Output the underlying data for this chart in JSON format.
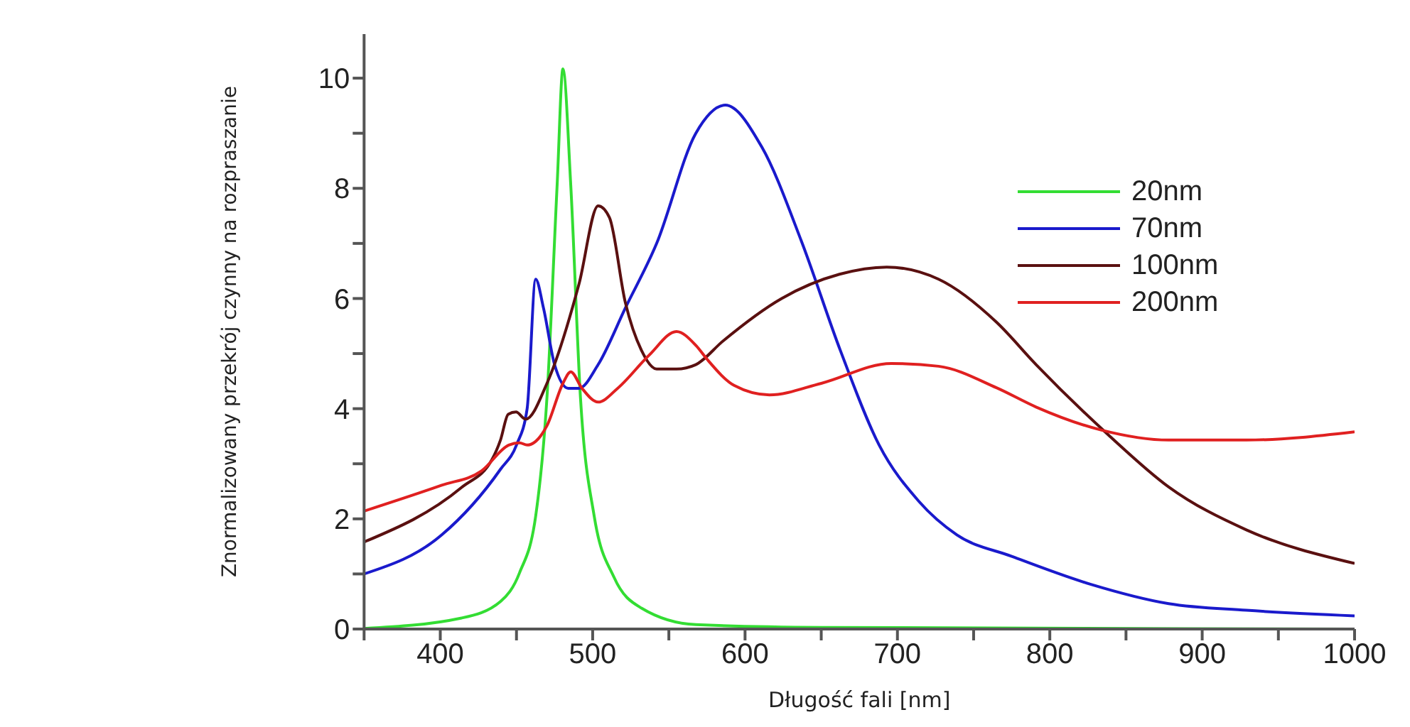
{
  "chart_data": {
    "type": "line",
    "xlabel": "Długość fali [nm]",
    "ylabel": "Znormalizowany przekrój czynny na rozpraszanie",
    "xlim": [
      350,
      1000
    ],
    "ylim": [
      0,
      10.8
    ],
    "xticks": [
      {
        "value": 350,
        "label": null
      },
      400,
      {
        "value": 450,
        "label": null
      },
      500,
      {
        "value": 550,
        "label": null
      },
      600,
      {
        "value": 650,
        "label": null
      },
      700,
      {
        "value": 750,
        "label": null
      },
      800,
      {
        "value": 850,
        "label": null
      },
      900,
      {
        "value": 950,
        "label": null
      },
      1000
    ],
    "yticks": [
      0,
      {
        "value": 1,
        "label": null
      },
      2,
      {
        "value": 3,
        "label": null
      },
      4,
      {
        "value": 5,
        "label": null
      },
      6,
      {
        "value": 7,
        "label": null
      },
      8,
      {
        "value": 9,
        "label": null
      },
      10
    ],
    "grid": false,
    "legend": "top right",
    "marker": "none",
    "line_style": "solid",
    "series": [
      {
        "name": "20nm",
        "color": "#33dd33",
        "x": [
          350,
          414,
          439.5,
          452,
          462.6,
          470,
          476.7,
          480.5,
          485.6,
          492,
          501,
          514,
          532,
          567.7,
          650,
          1000
        ],
        "values": [
          0.01,
          0.2,
          0.5,
          1.02,
          2.05,
          4.2,
          8.07,
          10.17,
          8.07,
          4.2,
          2.05,
          0.94,
          0.38,
          0.08,
          0.03,
          0
        ]
      },
      {
        "name": "70nm",
        "color": "#1a1acc",
        "x": [
          350,
          401,
          439.5,
          450,
          457,
          462.6,
          467.7,
          475,
          484,
          491,
          503.6,
          521.5,
          542,
          567.7,
          587,
          611,
          637,
          662.5,
          688,
          714,
          739,
          775,
          827,
          878,
          929,
          1000
        ],
        "values": [
          1.0,
          1.71,
          2.9,
          3.34,
          4.0,
          6.35,
          5.83,
          4.8,
          4.37,
          4.37,
          4.8,
          5.83,
          7.0,
          9.0,
          9.51,
          8.75,
          7.04,
          5.06,
          3.34,
          2.32,
          1.71,
          1.32,
          0.81,
          0.46,
          0.34,
          0.24
        ]
      },
      {
        "name": "100nm",
        "color": "#5a1010",
        "x": [
          350,
          414,
          434,
          439.5,
          444.6,
          449.7,
          456,
          470,
          491,
          503.6,
          511,
          521.5,
          532,
          542,
          555,
          567.7,
          585.6,
          624,
          662,
          693,
          727,
          765,
          791,
          839,
          878,
          929,
          1000
        ],
        "values": [
          1.58,
          2.57,
          3.08,
          3.43,
          3.9,
          3.94,
          3.81,
          4.46,
          6.26,
          7.68,
          7.47,
          5.92,
          5.06,
          4.72,
          4.72,
          4.8,
          5.23,
          6.0,
          6.44,
          6.57,
          6.35,
          5.57,
          4.8,
          3.51,
          2.58,
          1.8,
          1.19
        ]
      },
      {
        "name": "200nm",
        "color": "#e02020",
        "x": [
          350,
          401,
          427,
          445,
          452,
          457,
          470,
          480.5,
          485.6,
          493,
          503.6,
          516.4,
          537,
          555,
          567.7,
          575,
          593,
          616,
          650,
          696,
          727,
          765,
          791,
          834,
          878,
          929,
          1000
        ],
        "values": [
          2.14,
          2.61,
          2.87,
          3.34,
          3.38,
          3.34,
          3.69,
          4.46,
          4.67,
          4.37,
          4.12,
          4.37,
          4.97,
          5.4,
          5.15,
          4.9,
          4.42,
          4.25,
          4.46,
          4.82,
          4.77,
          4.38,
          4.03,
          3.61,
          3.43,
          3.43,
          3.58
        ]
      }
    ]
  }
}
